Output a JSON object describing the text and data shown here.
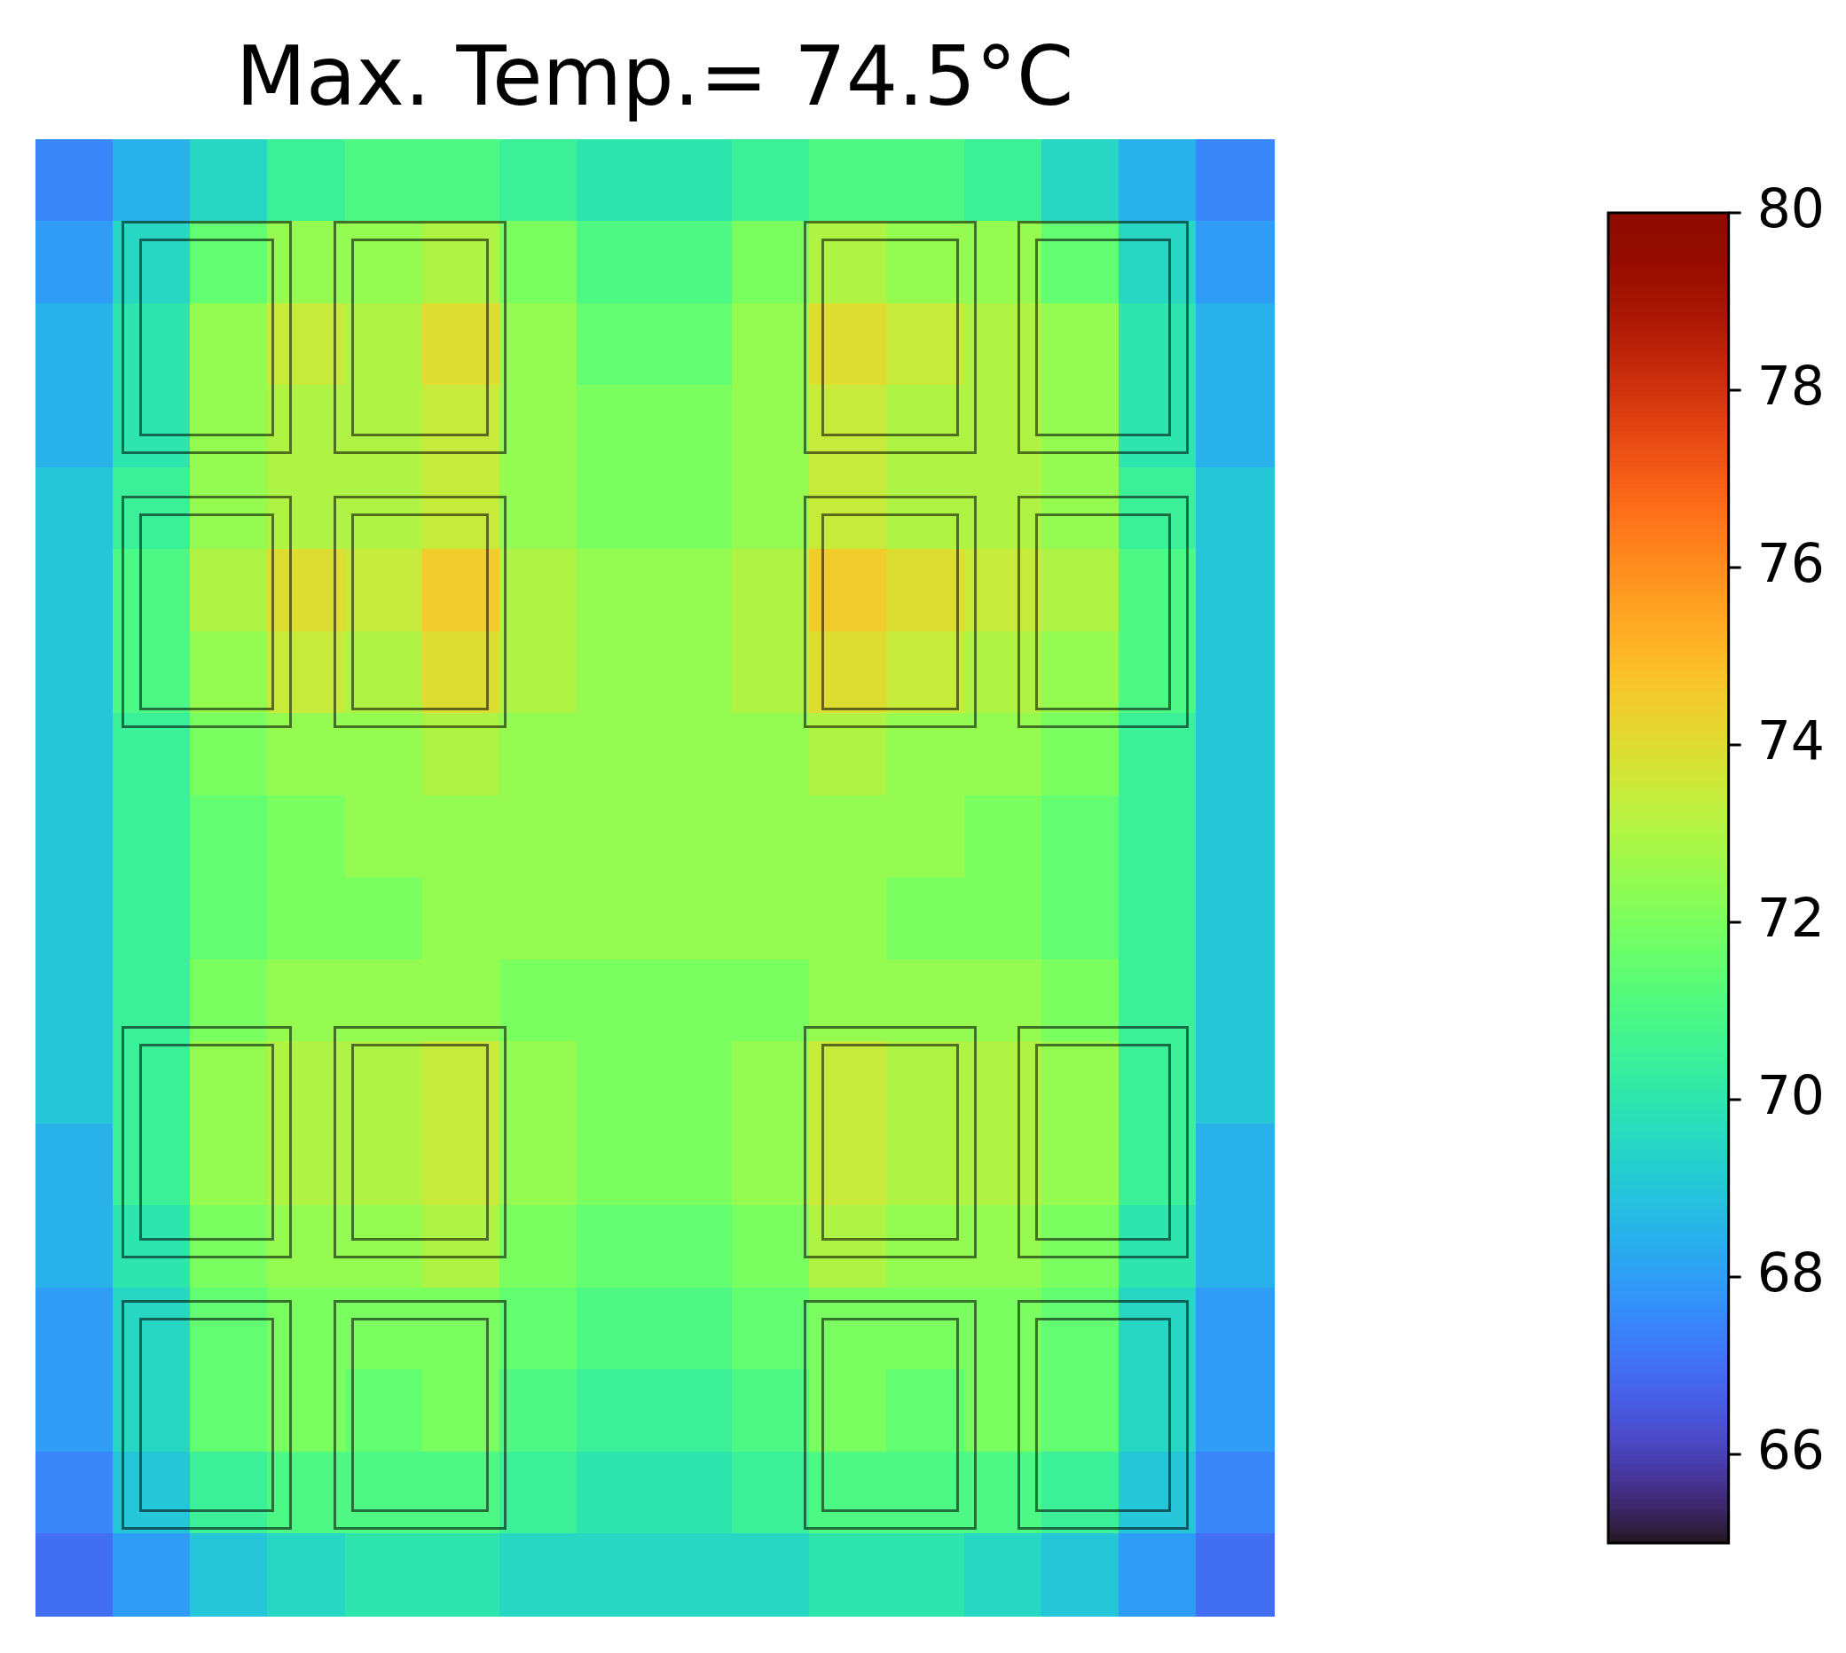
{
  "chart_data": {
    "type": "heatmap",
    "title": "Max. Temp.= 74.5°C",
    "tick_labels": false,
    "categories": [
      null,
      null,
      null,
      null,
      null,
      null,
      null,
      null,
      null,
      null,
      null,
      null,
      null,
      null,
      null,
      null
    ],
    "y_categories": [
      null,
      null,
      null,
      null,
      null,
      null,
      null,
      null,
      null,
      null,
      null,
      null,
      null,
      null,
      null,
      null,
      null,
      null
    ],
    "cells": [
      [
        67.5,
        68.5,
        69.5,
        70.5,
        71,
        71,
        70.5,
        70,
        70,
        70.5,
        71,
        71,
        70.5,
        69.5,
        68.5,
        67.5
      ],
      [
        68,
        69.5,
        71.5,
        72.5,
        72.5,
        73,
        72,
        71,
        71,
        72,
        73,
        72.5,
        72.5,
        71.5,
        69.5,
        68
      ],
      [
        68.5,
        70,
        72.5,
        73.5,
        73,
        74,
        72.5,
        71.5,
        71.5,
        72.5,
        74,
        73.5,
        73,
        72.5,
        70,
        68.5
      ],
      [
        68.5,
        70,
        72.5,
        73,
        73,
        73.5,
        72.5,
        72,
        72,
        72.5,
        73.5,
        73,
        73,
        72.5,
        70,
        68.5
      ],
      [
        69,
        70.5,
        72.5,
        73,
        73,
        73.5,
        72.5,
        72,
        72,
        72.5,
        73.5,
        73,
        73,
        72.5,
        70.5,
        69
      ],
      [
        69,
        71,
        73,
        74,
        73.5,
        74.5,
        73,
        72.5,
        72.5,
        73,
        74.5,
        74,
        73.5,
        73,
        71,
        69
      ],
      [
        69,
        71,
        72.5,
        73.5,
        73,
        74,
        73,
        72.5,
        72.5,
        73,
        74,
        73.5,
        73,
        72.5,
        71,
        69
      ],
      [
        69,
        70.5,
        72,
        72.5,
        72.5,
        73,
        72.5,
        72.5,
        72.5,
        72.5,
        73,
        72.5,
        72.5,
        72,
        70.5,
        69
      ],
      [
        69,
        70.5,
        71.5,
        72,
        72.5,
        72.5,
        72.5,
        72.5,
        72.5,
        72.5,
        72.5,
        72.5,
        72,
        71.5,
        70.5,
        69
      ],
      [
        69,
        70.5,
        71.5,
        72,
        72,
        72.5,
        72.5,
        72.5,
        72.5,
        72.5,
        72.5,
        72,
        72,
        71.5,
        70.5,
        69
      ],
      [
        69,
        70.5,
        72,
        72.5,
        72.5,
        72.5,
        72,
        72,
        72,
        72,
        72.5,
        72.5,
        72.5,
        72,
        70.5,
        69
      ],
      [
        69,
        70.5,
        72.5,
        73,
        73,
        73.5,
        72.5,
        72,
        72,
        72.5,
        73.5,
        73,
        73,
        72.5,
        70.5,
        69
      ],
      [
        68.5,
        70.5,
        72.5,
        73,
        73,
        73.5,
        72.5,
        72,
        72,
        72.5,
        73.5,
        73,
        73,
        72.5,
        70.5,
        68.5
      ],
      [
        68.5,
        70,
        72,
        72.5,
        72.5,
        73,
        72,
        71.5,
        71.5,
        72,
        73,
        72.5,
        72.5,
        72,
        70,
        68.5
      ],
      [
        68,
        69.5,
        71.5,
        72,
        72,
        72,
        71.5,
        71,
        71,
        71.5,
        72,
        72,
        72,
        71.5,
        69.5,
        68
      ],
      [
        68,
        69.5,
        71.5,
        72,
        71.5,
        72,
        71,
        70.5,
        70.5,
        71,
        72,
        71.5,
        72,
        71.5,
        69.5,
        68
      ],
      [
        67.5,
        69,
        70.5,
        71,
        71,
        71,
        70.5,
        70,
        70,
        70.5,
        71,
        71,
        71,
        70.5,
        69,
        67.5
      ],
      [
        67,
        68,
        69,
        69.5,
        70,
        70,
        69.5,
        69.5,
        69.5,
        69.5,
        70,
        70,
        69.5,
        69,
        68,
        67
      ]
    ],
    "clim": [
      65,
      80
    ],
    "cticks": [
      66,
      68,
      70,
      72,
      74,
      76,
      78,
      80
    ]
  }
}
